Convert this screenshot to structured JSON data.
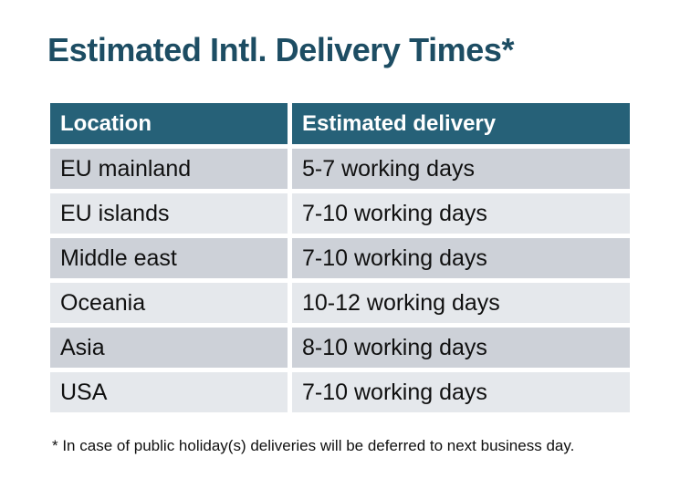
{
  "title": "Estimated Intl. Delivery Times*",
  "table": {
    "columns": [
      "Location",
      "Estimated delivery"
    ],
    "rows": [
      [
        "EU mainland",
        "5-7 working days"
      ],
      [
        "EU islands",
        "7-10 working days"
      ],
      [
        "Middle east",
        "7-10 working days"
      ],
      [
        "Oceania",
        "10-12 working days"
      ],
      [
        "Asia",
        "8-10 working days"
      ],
      [
        "USA",
        "7-10 working days"
      ]
    ]
  },
  "footnote": "* In case of public holiday(s) deliveries will be deferred to next business day.",
  "colors": {
    "title": "#1d4d63",
    "header_bg": "#266178",
    "header_text": "#ffffff",
    "row_odd_bg": "#cdd1d8",
    "row_even_bg": "#e5e8ec",
    "body_text": "#101010"
  }
}
